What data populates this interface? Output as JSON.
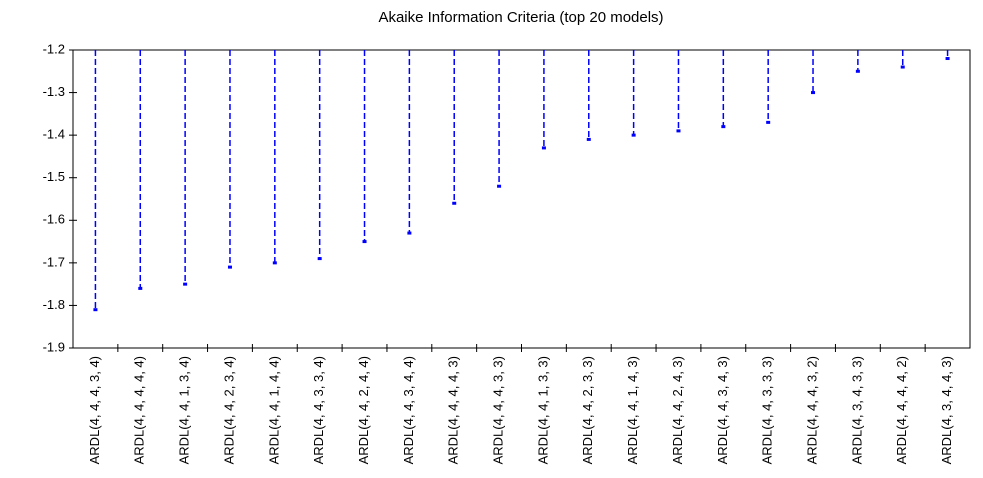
{
  "chart_data": {
    "type": "dropline",
    "title": "Akaike Information Criteria (top 20 models)",
    "categories": [
      "ARDL(4, 4, 4, 3, 4)",
      "ARDL(4, 4, 4, 4, 4)",
      "ARDL(4, 4, 1, 3, 4)",
      "ARDL(4, 4, 2, 3, 4)",
      "ARDL(4, 4, 1, 4, 4)",
      "ARDL(4, 4, 3, 3, 4)",
      "ARDL(4, 4, 2, 4, 4)",
      "ARDL(4, 4, 3, 4, 4)",
      "ARDL(4, 4, 4, 4, 3)",
      "ARDL(4, 4, 4, 3, 3)",
      "ARDL(4, 4, 1, 3, 3)",
      "ARDL(4, 4, 2, 3, 3)",
      "ARDL(4, 4, 1, 4, 3)",
      "ARDL(4, 4, 2, 4, 3)",
      "ARDL(4, 4, 3, 4, 3)",
      "ARDL(4, 4, 3, 3, 3)",
      "ARDL(4, 4, 4, 3, 2)",
      "ARDL(4, 3, 4, 3, 3)",
      "ARDL(4, 4, 4, 4, 2)",
      "ARDL(4, 3, 4, 4, 3)"
    ],
    "values": [
      -1.81,
      -1.76,
      -1.75,
      -1.71,
      -1.7,
      -1.69,
      -1.65,
      -1.63,
      -1.56,
      -1.52,
      -1.43,
      -1.41,
      -1.4,
      -1.39,
      -1.38,
      -1.37,
      -1.3,
      -1.25,
      -1.24,
      -1.22
    ],
    "color": "#0000ff",
    "ylim": [
      -1.9,
      -1.2
    ],
    "yticks": [
      -1.2,
      -1.3,
      -1.4,
      -1.5,
      -1.6,
      -1.7,
      -1.8,
      -1.9
    ]
  }
}
